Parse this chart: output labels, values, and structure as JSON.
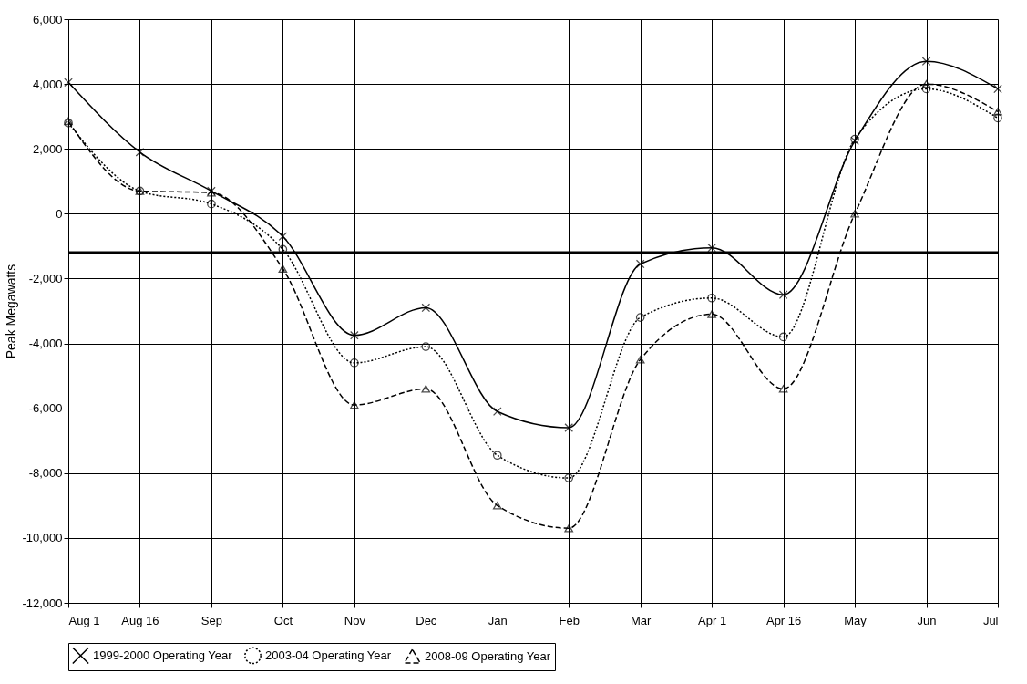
{
  "chart_data": {
    "type": "line",
    "ylabel": "Peak Megawatts",
    "categories": [
      "Aug 1",
      "Aug 16",
      "Sep",
      "Oct",
      "Nov",
      "Dec",
      "Jan",
      "Feb",
      "Mar",
      "Apr 1",
      "Apr 16",
      "May",
      "Jun",
      "Jul"
    ],
    "series": [
      {
        "name": "1999-2000 Operating Year",
        "color": "#000000",
        "marker": "cross",
        "line_style": "solid",
        "values": [
          4050,
          1900,
          700,
          -700,
          -3750,
          -2900,
          -6100,
          -6600,
          -1550,
          -1050,
          -2500,
          2250,
          4700,
          3850
        ]
      },
      {
        "name": "2003-04 Operating Year",
        "color": "#000000",
        "marker": "circle",
        "line_style": "dotted",
        "values": [
          2800,
          700,
          300,
          -1100,
          -4600,
          -4100,
          -7450,
          -8150,
          -3200,
          -2600,
          -3800,
          2300,
          3850,
          2950
        ]
      },
      {
        "name": "2008-09 Operating Year",
        "color": "#000000",
        "marker": "triangle",
        "line_style": "dashed",
        "values": [
          2850,
          700,
          650,
          -1700,
          -5900,
          -5400,
          -9000,
          -9700,
          -4500,
          -3100,
          -5400,
          0,
          4000,
          3150
        ]
      }
    ],
    "ylim": [
      -12000,
      6000
    ],
    "yticks": [
      {
        "value": -12000,
        "label": "-12,000"
      },
      {
        "value": -10000,
        "label": "-10,000"
      },
      {
        "value": -8000,
        "label": "-8,000"
      },
      {
        "value": -6000,
        "label": "-6,000"
      },
      {
        "value": -4000,
        "label": "-4,000"
      },
      {
        "value": -2000,
        "label": "-2,000"
      },
      0,
      {
        "value": 2000,
        "label": "2,000"
      },
      {
        "value": 4000,
        "label": "4,000"
      },
      {
        "value": 6000,
        "label": "6,000"
      }
    ],
    "ref_lines": [
      {
        "axis": "y",
        "value": -1200,
        "color": "#000000"
      }
    ],
    "grid": true,
    "legend": "bottom"
  }
}
